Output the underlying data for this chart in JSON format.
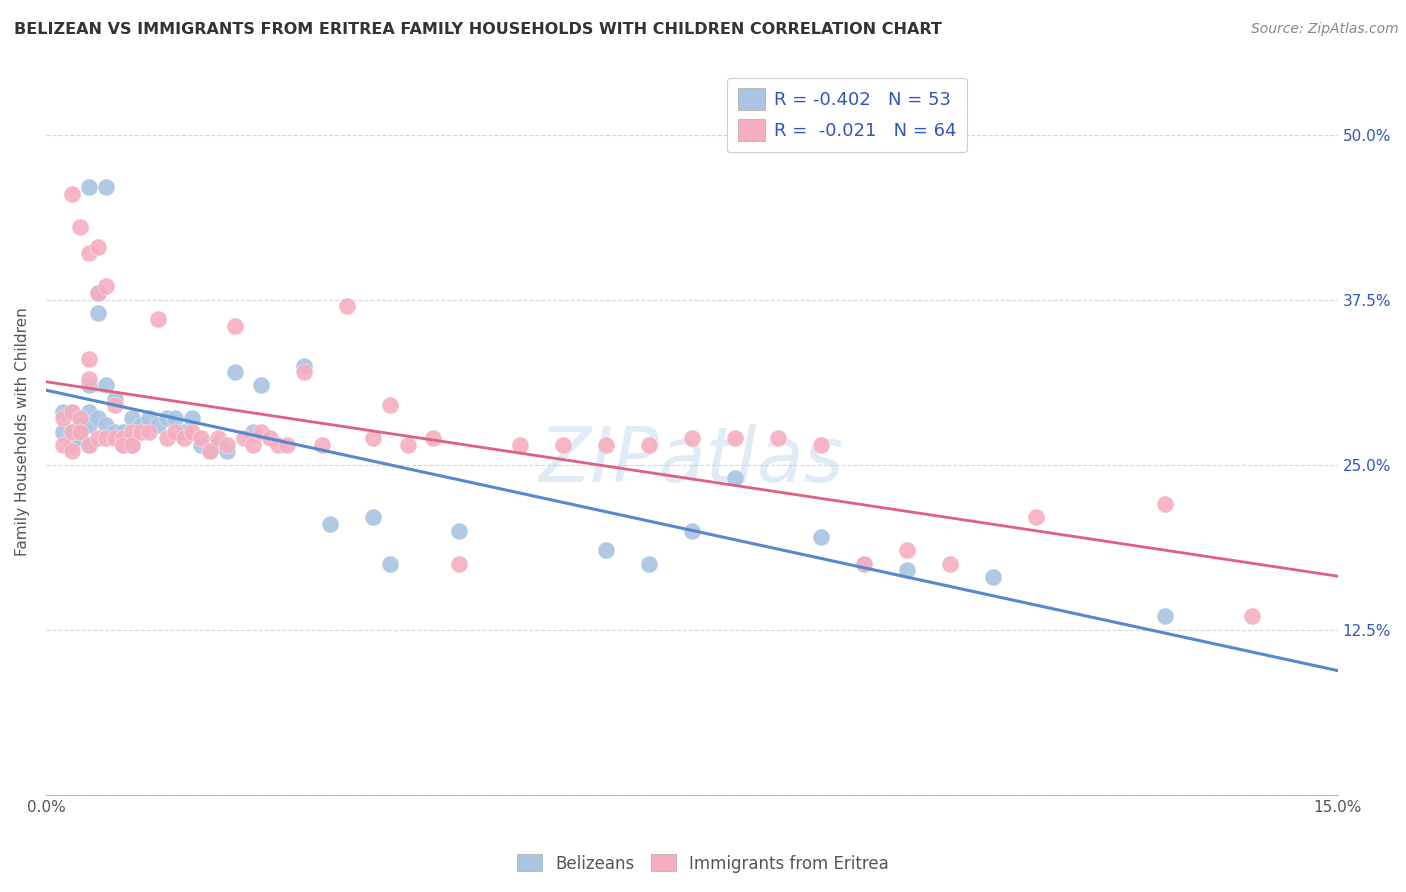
{
  "title": "BELIZEAN VS IMMIGRANTS FROM ERITREA FAMILY HOUSEHOLDS WITH CHILDREN CORRELATION CHART",
  "source": "Source: ZipAtlas.com",
  "ylabel": "Family Households with Children",
  "xlim": [
    0.0,
    0.15
  ],
  "ylim": [
    0.0,
    0.55
  ],
  "xtick_positions": [
    0.0,
    0.025,
    0.05,
    0.075,
    0.1,
    0.125,
    0.15
  ],
  "xtick_labels": [
    "0.0%",
    "",
    "",
    "",
    "",
    "",
    "15.0%"
  ],
  "ytick_positions": [
    0.0,
    0.125,
    0.25,
    0.375,
    0.5
  ],
  "ytick_labels": [
    "",
    "12.5%",
    "25.0%",
    "37.5%",
    "50.0%"
  ],
  "belizean_color": "#aac4e2",
  "eritrea_color": "#f5aec0",
  "belizean_line_color": "#5588cc",
  "eritrea_line_color": "#e06080",
  "legend_text_color": "#3355bb",
  "R_belizean": -0.402,
  "N_belizean": 53,
  "R_eritrea": -0.021,
  "N_eritrea": 64,
  "grid_color": "#cccccc",
  "background_color": "#ffffff",
  "belizean_x": [
    0.005,
    0.007,
    0.002,
    0.002,
    0.003,
    0.003,
    0.003,
    0.004,
    0.004,
    0.004,
    0.005,
    0.005,
    0.005,
    0.005,
    0.006,
    0.006,
    0.006,
    0.007,
    0.007,
    0.008,
    0.008,
    0.009,
    0.009,
    0.01,
    0.01,
    0.011,
    0.012,
    0.013,
    0.014,
    0.015,
    0.016,
    0.017,
    0.018,
    0.019,
    0.02,
    0.021,
    0.022,
    0.024,
    0.025,
    0.03,
    0.033,
    0.038,
    0.04,
    0.048,
    0.065,
    0.07,
    0.075,
    0.08,
    0.09,
    0.095,
    0.1,
    0.11,
    0.13
  ],
  "belizean_y": [
    0.46,
    0.46,
    0.29,
    0.275,
    0.29,
    0.275,
    0.265,
    0.285,
    0.28,
    0.27,
    0.31,
    0.29,
    0.28,
    0.265,
    0.38,
    0.365,
    0.285,
    0.31,
    0.28,
    0.3,
    0.275,
    0.265,
    0.275,
    0.285,
    0.265,
    0.28,
    0.285,
    0.28,
    0.285,
    0.285,
    0.275,
    0.285,
    0.265,
    0.26,
    0.265,
    0.26,
    0.32,
    0.275,
    0.31,
    0.325,
    0.205,
    0.21,
    0.175,
    0.2,
    0.185,
    0.175,
    0.2,
    0.24,
    0.195,
    0.175,
    0.17,
    0.165,
    0.135
  ],
  "eritrea_x": [
    0.003,
    0.004,
    0.005,
    0.002,
    0.002,
    0.003,
    0.003,
    0.003,
    0.004,
    0.004,
    0.005,
    0.005,
    0.005,
    0.006,
    0.006,
    0.006,
    0.007,
    0.007,
    0.008,
    0.008,
    0.009,
    0.009,
    0.01,
    0.01,
    0.011,
    0.012,
    0.013,
    0.014,
    0.015,
    0.016,
    0.017,
    0.018,
    0.019,
    0.02,
    0.021,
    0.022,
    0.023,
    0.024,
    0.025,
    0.026,
    0.027,
    0.028,
    0.03,
    0.032,
    0.035,
    0.038,
    0.04,
    0.042,
    0.045,
    0.048,
    0.055,
    0.06,
    0.065,
    0.07,
    0.075,
    0.08,
    0.085,
    0.09,
    0.095,
    0.1,
    0.105,
    0.115,
    0.13,
    0.14
  ],
  "eritrea_y": [
    0.455,
    0.43,
    0.41,
    0.285,
    0.265,
    0.29,
    0.275,
    0.26,
    0.285,
    0.275,
    0.33,
    0.315,
    0.265,
    0.415,
    0.38,
    0.27,
    0.385,
    0.27,
    0.295,
    0.27,
    0.27,
    0.265,
    0.275,
    0.265,
    0.275,
    0.275,
    0.36,
    0.27,
    0.275,
    0.27,
    0.275,
    0.27,
    0.26,
    0.27,
    0.265,
    0.355,
    0.27,
    0.265,
    0.275,
    0.27,
    0.265,
    0.265,
    0.32,
    0.265,
    0.37,
    0.27,
    0.295,
    0.265,
    0.27,
    0.175,
    0.265,
    0.265,
    0.265,
    0.265,
    0.27,
    0.27,
    0.27,
    0.265,
    0.175,
    0.185,
    0.175,
    0.21,
    0.22,
    0.135
  ]
}
